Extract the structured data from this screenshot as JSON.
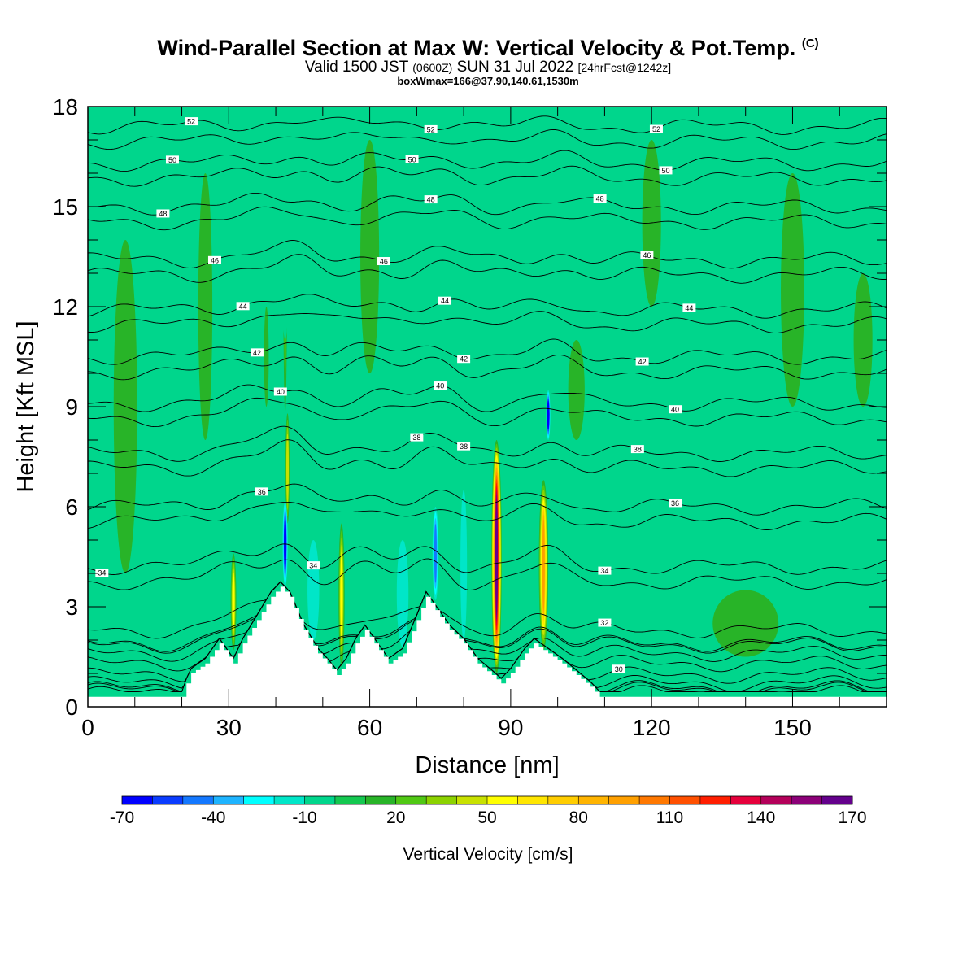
{
  "header": {
    "title_main": "Wind-Parallel Section at Max W: Vertical Velocity & Pot.Temp.",
    "title_mark": "(C)",
    "valid_a": "Valid 1500 JST",
    "valid_b": "(0600Z)",
    "valid_c": "SUN 31 Jul 2022",
    "valid_d": "[24hrFcst@1242z]",
    "box_info": "boxWmax=166@37.90,140.61,1530m"
  },
  "chart_data": {
    "type": "heatmap",
    "xlabel": "Distance [nm]",
    "ylabel": "Height [Kft MSL]",
    "xlim": [
      0,
      170
    ],
    "ylim": [
      0,
      18
    ],
    "x_ticks": [
      0,
      30,
      60,
      90,
      120,
      150
    ],
    "y_ticks": [
      0,
      3,
      6,
      9,
      12,
      15,
      18
    ],
    "colorbar": {
      "label": "Vertical Velocity [cm/s]",
      "tick_values": [
        -70,
        -40,
        -10,
        20,
        50,
        80,
        110,
        140,
        170
      ],
      "tick_labels": [
        "-70",
        "-40",
        "-10",
        "20",
        "50",
        "80",
        "110",
        "140",
        "170"
      ],
      "colors": [
        "#0000ff",
        "#0a3cff",
        "#1478ff",
        "#1eb4ff",
        "#00ffff",
        "#00e6c8",
        "#00d68c",
        "#14c850",
        "#28b428",
        "#50c814",
        "#8cd200",
        "#c8e100",
        "#ffff00",
        "#ffe600",
        "#ffcd00",
        "#ffb400",
        "#ffa000",
        "#ff7800",
        "#ff5000",
        "#ff1e00",
        "#e6003c",
        "#b4005a",
        "#8c0078",
        "#64008c"
      ]
    },
    "background_color": "#00d68c",
    "isentropes_K_labels": [
      "30",
      "32",
      "34",
      "36",
      "38",
      "40",
      "42",
      "44",
      "46",
      "48",
      "50",
      "52"
    ],
    "isentropes": [
      {
        "label": "30",
        "base": 0.95,
        "labelx": [
          113
        ]
      },
      {
        "label": "32",
        "base": 2.3,
        "labelx": [
          110
        ]
      },
      {
        "label": "34",
        "base": 4.2,
        "labelx": [
          3,
          48,
          110
        ]
      },
      {
        "label": "36",
        "base": 6.0,
        "labelx": [
          37,
          125
        ]
      },
      {
        "label": "38",
        "base": 7.6,
        "labelx": [
          70,
          80,
          117
        ]
      },
      {
        "label": "40",
        "base": 9.1,
        "labelx": [
          41,
          75,
          125
        ]
      },
      {
        "label": "42",
        "base": 10.5,
        "labelx": [
          36,
          80,
          118
        ]
      },
      {
        "label": "44",
        "base": 11.9,
        "labelx": [
          33,
          76,
          128
        ]
      },
      {
        "label": "46",
        "base": 13.4,
        "labelx": [
          27,
          63,
          119
        ]
      },
      {
        "label": "48",
        "base": 15.0,
        "labelx": [
          16,
          73,
          109
        ]
      },
      {
        "label": "50",
        "base": 16.3,
        "labelx": [
          18,
          69,
          123
        ]
      },
      {
        "label": "52",
        "base": 17.4,
        "labelx": [
          22,
          73,
          121
        ]
      }
    ],
    "terrain": [
      {
        "x": 0,
        "h": 0.3
      },
      {
        "x": 20,
        "h": 0.3
      },
      {
        "x": 21,
        "h": 0.7
      },
      {
        "x": 22,
        "h": 1.0
      },
      {
        "x": 25,
        "h": 1.3
      },
      {
        "x": 28,
        "h": 1.9
      },
      {
        "x": 31,
        "h": 1.3
      },
      {
        "x": 33,
        "h": 1.9
      },
      {
        "x": 36,
        "h": 2.6
      },
      {
        "x": 39,
        "h": 3.3
      },
      {
        "x": 41,
        "h": 3.6
      },
      {
        "x": 43,
        "h": 3.3
      },
      {
        "x": 46,
        "h": 2.3
      },
      {
        "x": 49,
        "h": 1.6
      },
      {
        "x": 51,
        "h": 1.3
      },
      {
        "x": 53,
        "h": 0.95
      },
      {
        "x": 55,
        "h": 1.3
      },
      {
        "x": 57,
        "h": 1.9
      },
      {
        "x": 59,
        "h": 2.3
      },
      {
        "x": 61,
        "h": 1.9
      },
      {
        "x": 64,
        "h": 1.3
      },
      {
        "x": 67,
        "h": 1.6
      },
      {
        "x": 70,
        "h": 2.6
      },
      {
        "x": 72,
        "h": 3.3
      },
      {
        "x": 74,
        "h": 2.9
      },
      {
        "x": 77,
        "h": 2.3
      },
      {
        "x": 80,
        "h": 1.9
      },
      {
        "x": 83,
        "h": 1.3
      },
      {
        "x": 86,
        "h": 0.95
      },
      {
        "x": 88,
        "h": 0.7
      },
      {
        "x": 90,
        "h": 1.0
      },
      {
        "x": 93,
        "h": 1.6
      },
      {
        "x": 95,
        "h": 1.9
      },
      {
        "x": 98,
        "h": 1.6
      },
      {
        "x": 101,
        "h": 1.3
      },
      {
        "x": 104,
        "h": 0.95
      },
      {
        "x": 107,
        "h": 0.6
      },
      {
        "x": 109,
        "h": 0.3
      },
      {
        "x": 170,
        "h": 0.3
      }
    ],
    "w_cells": [
      {
        "x": 87,
        "y0": 1.0,
        "y1": 8.0,
        "w": 170,
        "width": 2.2
      },
      {
        "x": 97,
        "y0": 1.7,
        "y1": 6.8,
        "w": 95,
        "width": 2.0
      },
      {
        "x": 31,
        "y0": 1.7,
        "y1": 4.6,
        "w": 60,
        "width": 1.2
      },
      {
        "x": 54,
        "y0": 1.2,
        "y1": 5.5,
        "w": 55,
        "width": 1.3
      },
      {
        "x": 42.5,
        "y0": 5.5,
        "y1": 8.8,
        "w": 45,
        "width": 0.9
      },
      {
        "x": 42,
        "y0": 8.8,
        "y1": 18.0,
        "w": 30,
        "width": 0.8
      },
      {
        "x": 38,
        "y0": 9.0,
        "y1": 12.0,
        "w": 20,
        "width": 1.0
      },
      {
        "x": 42,
        "y0": 3.6,
        "y1": 6.2,
        "w": -70,
        "width": 1.1
      },
      {
        "x": 74,
        "y0": 3.2,
        "y1": 6.0,
        "w": -50,
        "width": 1.3
      },
      {
        "x": 80,
        "y0": 2.0,
        "y1": 6.5,
        "w": -20,
        "width": 1.4
      },
      {
        "x": 67,
        "y0": 1.8,
        "y1": 5.0,
        "w": -15,
        "width": 2.5
      },
      {
        "x": 48,
        "y0": 2.0,
        "y1": 5.0,
        "w": -15,
        "width": 2.5
      },
      {
        "x": 98,
        "y0": 8.0,
        "y1": 9.5,
        "w": -70,
        "width": 0.9
      },
      {
        "x": 42,
        "y0": 11.0,
        "y1": 18.0,
        "w": -10,
        "width": 1.8
      },
      {
        "x": 75,
        "y0": 11.0,
        "y1": 18.0,
        "w": -10,
        "width": 2.2
      },
      {
        "x": 85,
        "y0": 9.0,
        "y1": 12.0,
        "w": -10,
        "width": 2.0
      },
      {
        "x": 104,
        "y0": 8.0,
        "y1": 11.0,
        "w": 20,
        "width": 3.5
      },
      {
        "x": 140,
        "y0": 1.5,
        "y1": 3.5,
        "w": 20,
        "width": 14
      },
      {
        "x": 165,
        "y0": 9.0,
        "y1": 13.0,
        "w": 20,
        "width": 4
      },
      {
        "x": 8,
        "y0": 4.0,
        "y1": 14.0,
        "w": 20,
        "width": 5
      },
      {
        "x": 25,
        "y0": 8.0,
        "y1": 16.0,
        "w": 20,
        "width": 3
      },
      {
        "x": 60,
        "y0": 10.0,
        "y1": 17.0,
        "w": 20,
        "width": 4
      },
      {
        "x": 120,
        "y0": 12.0,
        "y1": 17.0,
        "w": 20,
        "width": 4
      },
      {
        "x": 150,
        "y0": 9.0,
        "y1": 16.0,
        "w": 20,
        "width": 5
      }
    ]
  }
}
